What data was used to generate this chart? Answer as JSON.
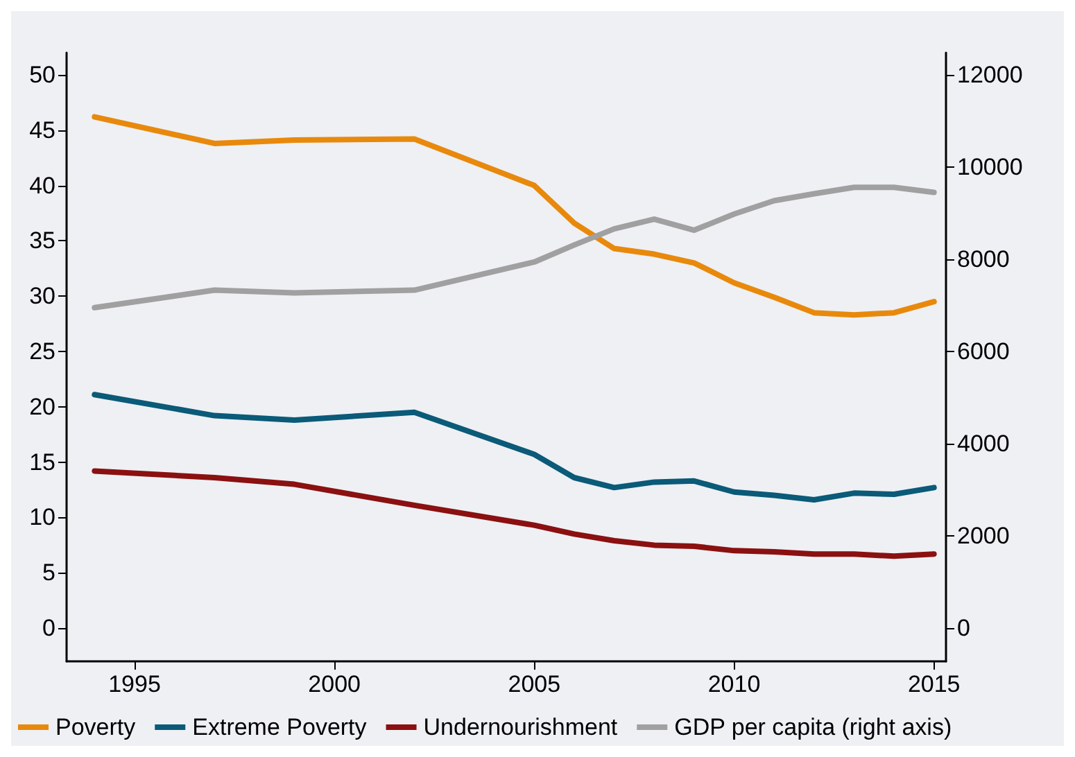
{
  "chart_data": {
    "type": "line",
    "x": [
      1994,
      1997,
      1999,
      2002,
      2005,
      2006,
      2007,
      2008,
      2009,
      2010,
      2011,
      2012,
      2013,
      2014,
      2015
    ],
    "series": [
      {
        "name": "Poverty",
        "color": "#e8890c",
        "values": [
          46.2,
          43.8,
          44.1,
          44.2,
          40.0,
          36.6,
          34.3,
          33.8,
          33.0,
          31.2,
          29.9,
          28.5,
          28.3,
          28.5,
          29.5
        ]
      },
      {
        "name": "Extreme Poverty",
        "color": "#0a5a78",
        "values": [
          21.1,
          19.2,
          18.8,
          19.5,
          15.7,
          13.6,
          12.7,
          13.2,
          13.3,
          12.3,
          12.0,
          11.6,
          12.2,
          12.1,
          12.7
        ]
      },
      {
        "name": "Undernourishment",
        "color": "#8b1010",
        "values": [
          14.2,
          13.6,
          13.0,
          11.1,
          9.3,
          8.5,
          7.9,
          7.5,
          7.4,
          7.0,
          6.9,
          6.7,
          6.7,
          6.5,
          6.7
        ]
      },
      {
        "name": "GDP per capita (right axis)",
        "color": "#a0a0a0",
        "axis": "y2",
        "values": [
          6950,
          7330,
          7270,
          7330,
          7940,
          8310,
          8660,
          8870,
          8630,
          8980,
          9270,
          9420,
          9560,
          9560,
          9450
        ]
      }
    ],
    "xlim": [
      1993.3,
      2015.3
    ],
    "xticks": [
      1995,
      2000,
      2005,
      2010,
      2015
    ],
    "ylim": [
      -3,
      52
    ],
    "yticks": [
      0,
      5,
      10,
      15,
      20,
      25,
      30,
      35,
      40,
      45,
      50
    ],
    "y2lim": [
      -720,
      12480
    ],
    "y2ticks": [
      0,
      2000,
      4000,
      6000,
      8000,
      10000,
      12000
    ],
    "grid": false,
    "legend": "bottom",
    "marker": "none",
    "line_style": "solid"
  }
}
